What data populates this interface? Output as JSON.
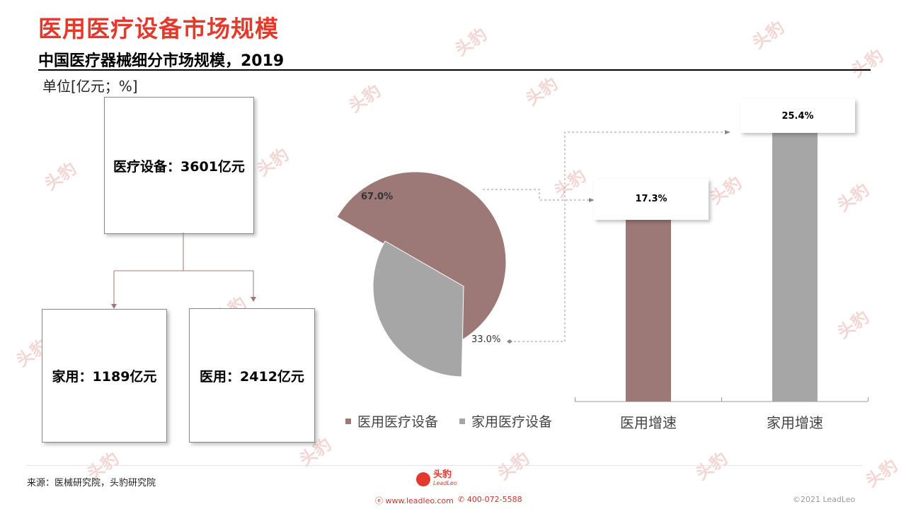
{
  "title": "医用医疗设备市场规模",
  "subtitle": "中国医疗器械细分市场规模，2019",
  "unit": "单位[亿元；%]",
  "tree": {
    "root": "医疗设备：3601亿元",
    "left": "家用：1189亿元",
    "right": "医用：2412亿元"
  },
  "chart_data": [
    {
      "type": "pie",
      "categories": [
        "医用医疗设备",
        "家用医疗设备"
      ],
      "values": [
        67.0,
        33.0
      ],
      "data_labels": [
        "67.0%",
        "33.0%"
      ],
      "legend": "bottom",
      "colors": [
        "#9c7876",
        "#a6a6a6"
      ]
    },
    {
      "type": "bar",
      "categories": [
        "医用增速",
        "家用增速"
      ],
      "values": [
        17.3,
        25.4
      ],
      "data_labels": [
        "17.3%",
        "25.4%"
      ],
      "ylim": [
        0,
        27
      ],
      "grid": false,
      "colors": [
        "#9c7876",
        "#a6a6a6"
      ]
    }
  ],
  "footer": {
    "source": "来源：医械研究院，头豹研究院",
    "logo_text": "头豹",
    "logo_sub": "LeadLeo",
    "website": "www.leadleo.com",
    "phone": "400-072-5588",
    "copyright": "©2021 LeadLeo"
  },
  "watermark": "头豹",
  "colors": {
    "title": "#e23b2e",
    "medical": "#9c7876",
    "home": "#a6a6a6"
  }
}
